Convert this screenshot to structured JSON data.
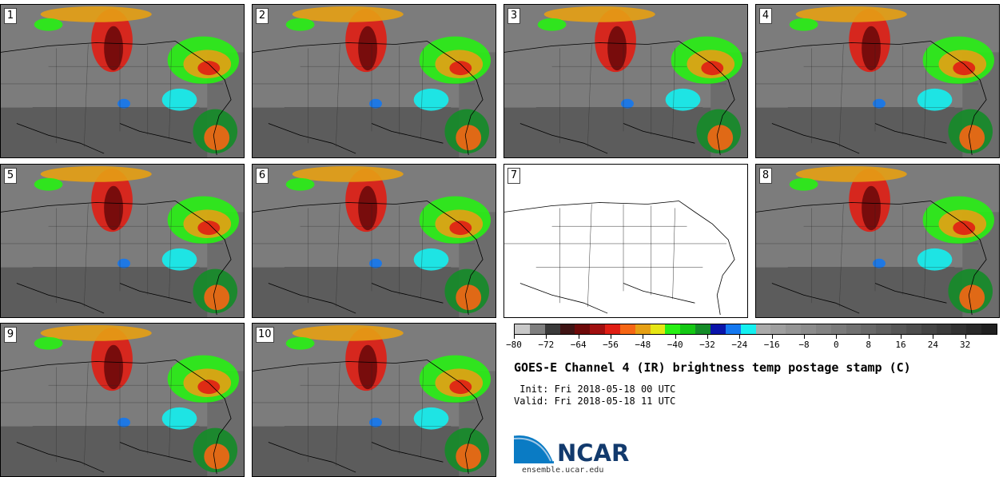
{
  "panels": [
    {
      "label": "1",
      "has_data": true
    },
    {
      "label": "2",
      "has_data": true
    },
    {
      "label": "3",
      "has_data": true
    },
    {
      "label": "4",
      "has_data": true
    },
    {
      "label": "5",
      "has_data": true
    },
    {
      "label": "6",
      "has_data": true
    },
    {
      "label": "7",
      "has_data": false
    },
    {
      "label": "8",
      "has_data": true
    },
    {
      "label": "9",
      "has_data": true
    },
    {
      "label": "10",
      "has_data": true
    }
  ],
  "colorbar": {
    "colors": [
      "#c8c8c8",
      "#7f7f7f",
      "#3a3a3a",
      "#3f1414",
      "#6e0a0a",
      "#a00f0f",
      "#e01e14",
      "#f66614",
      "#e6a014",
      "#e6e614",
      "#28f014",
      "#14c814",
      "#148c28",
      "#0a14aa",
      "#1478f0",
      "#14f0f0",
      "#aaaaaa",
      "#9f9f9f",
      "#959595",
      "#8c8c8c",
      "#838383",
      "#7a7a7a",
      "#717171",
      "#686868",
      "#5f5f5f",
      "#565656",
      "#4d4d4d",
      "#444444",
      "#3b3b3b",
      "#323232",
      "#292929",
      "#202020"
    ],
    "tick_labels": [
      "−80",
      "−72",
      "−64",
      "−56",
      "−48",
      "−40",
      "−32",
      "−24",
      "−16",
      "−8",
      "0",
      "8",
      "16",
      "24",
      "32"
    ],
    "min": -80,
    "max": 40
  },
  "title": "GOES-E Channel 4 (IR) brightness temp postage stamp (C)",
  "init_line": " Init: Fri 2018-05-18 00 UTC",
  "valid_line": "Valid: Fri 2018-05-18 11 UTC",
  "logo": {
    "text": "NCAR",
    "color": "#123a6d"
  },
  "url": "ensemble.ucar.edu"
}
